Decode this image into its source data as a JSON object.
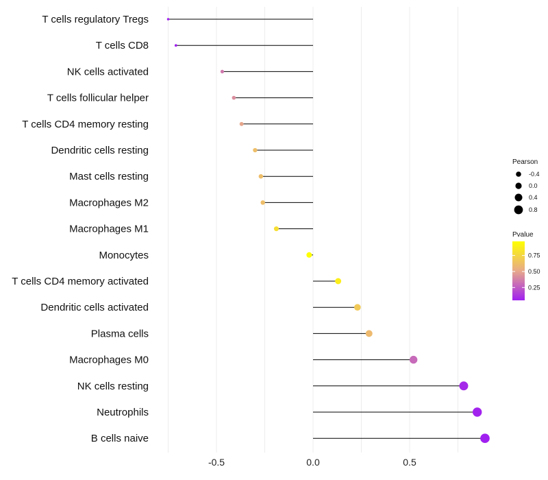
{
  "chart_data": {
    "type": "lollipop",
    "title": "",
    "xlabel": "",
    "ylabel": "",
    "xlim": [
      -0.75,
      0.9
    ],
    "x_ticks": [
      -0.5,
      0.0,
      0.5
    ],
    "x_tick_labels": [
      "-0.5",
      "0.0",
      "0.5"
    ],
    "grid": true,
    "series": [
      {
        "name": "T cells regulatory  Tregs",
        "value": -0.75,
        "pvalue": 0.01
      },
      {
        "name": "T cells CD8",
        "value": -0.71,
        "pvalue": 0.03
      },
      {
        "name": "NK cells activated",
        "value": -0.47,
        "pvalue": 0.35
      },
      {
        "name": "T cells follicular helper",
        "value": -0.41,
        "pvalue": 0.42
      },
      {
        "name": "T cells CD4 memory resting",
        "value": -0.37,
        "pvalue": 0.5
      },
      {
        "name": "Dendritic cells resting",
        "value": -0.3,
        "pvalue": 0.62
      },
      {
        "name": "Mast cells resting",
        "value": -0.27,
        "pvalue": 0.62
      },
      {
        "name": "Macrophages M2",
        "value": -0.26,
        "pvalue": 0.62
      },
      {
        "name": "Macrophages M1",
        "value": -0.19,
        "pvalue": 0.8
      },
      {
        "name": "Monocytes",
        "value": -0.02,
        "pvalue": 0.98
      },
      {
        "name": "T cells CD4 memory activated",
        "value": 0.13,
        "pvalue": 0.88
      },
      {
        "name": "Dendritic cells activated",
        "value": 0.23,
        "pvalue": 0.68
      },
      {
        "name": "Plasma cells",
        "value": 0.29,
        "pvalue": 0.6
      },
      {
        "name": "Macrophages M0",
        "value": 0.52,
        "pvalue": 0.3
      },
      {
        "name": "NK cells resting",
        "value": 0.78,
        "pvalue": 0.08
      },
      {
        "name": "Neutrophils",
        "value": 0.85,
        "pvalue": 0.06
      },
      {
        "name": "B cells naive",
        "value": 0.89,
        "pvalue": 0.05
      }
    ],
    "legend": {
      "position": "right",
      "size_title": "Pearson",
      "size_breaks": [
        -0.4,
        0.0,
        0.4,
        0.8
      ],
      "size_labels": [
        "-0.4",
        "0.0",
        "0.4",
        "0.8"
      ],
      "color_title": "Pvalue",
      "color_breaks": [
        0.75,
        0.5,
        0.25
      ],
      "color_labels": [
        "0.75",
        "0.50",
        "0.25"
      ],
      "color_range": [
        0.05,
        0.97
      ],
      "color_low": "#a020f0",
      "color_mid": "#e8a98a",
      "color_high": "#ffff00"
    }
  }
}
